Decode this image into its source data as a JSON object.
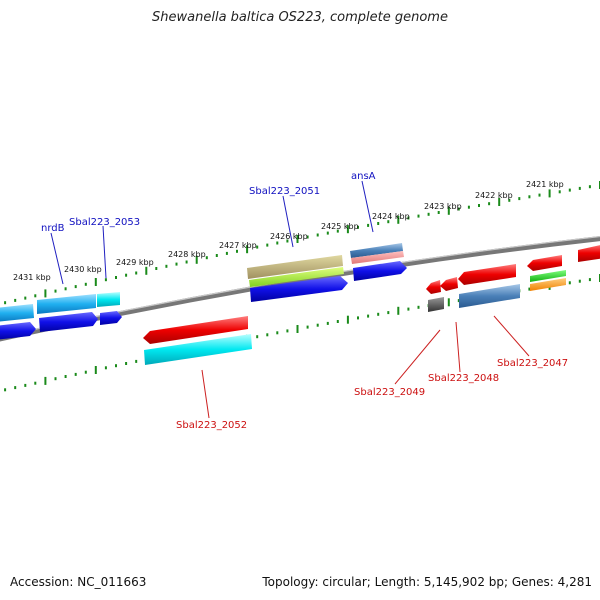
{
  "title": "Shewanella baltica OS223, complete genome",
  "accession": "Accession: NC_011663",
  "topology": "Topology: circular; Length: 5,145,902 bp; Genes: 4,281",
  "scale_labels": [
    "2431 kbp",
    "2430 kbp",
    "2429 kbp",
    "2428 kbp",
    "2427 kbp",
    "2426 kbp",
    "2425 kbp",
    "2424 kbp",
    "2423 kbp",
    "2422 kbp",
    "2421 kbp"
  ],
  "gene_labels": {
    "nrdB": "nrdB",
    "sbal_2053": "Sbal223_2053",
    "sbal_2051": "Sbal223_2051",
    "ansA": "ansA",
    "sbal_2052": "Sbal223_2052",
    "sbal_2049": "Sbal223_2049",
    "sbal_2048": "Sbal223_2048",
    "sbal_2047": "Sbal223_2047"
  },
  "colors": {
    "forward_label": "#1010c0",
    "reverse_label": "#cc1010",
    "tick": "#1a8a1a",
    "backbone": "#888888"
  }
}
